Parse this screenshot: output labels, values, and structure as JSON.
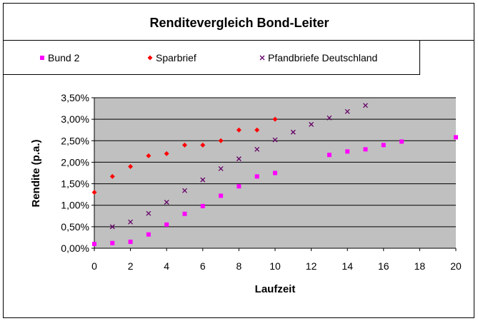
{
  "chart_data": {
    "type": "scatter",
    "title": "Renditevergleich Bond-Leiter",
    "xlabel": "Laufzeit",
    "ylabel": "Rendite (p.a.)",
    "xlim": [
      0,
      20
    ],
    "ylim": [
      0,
      3.5
    ],
    "x_ticks": [
      "0",
      "2",
      "4",
      "6",
      "8",
      "10",
      "12",
      "14",
      "16",
      "18",
      "20"
    ],
    "y_ticks": [
      "0,00%",
      "0,50%",
      "1,00%",
      "1,50%",
      "2,00%",
      "2,50%",
      "3,00%",
      "3,50%"
    ],
    "grid": true,
    "legend_position": "top",
    "series": [
      {
        "name": "Bund 2",
        "marker": "square",
        "color": "#ff00ff",
        "points": [
          [
            0,
            0.1
          ],
          [
            1,
            0.12
          ],
          [
            2,
            0.15
          ],
          [
            3,
            0.32
          ],
          [
            4,
            0.55
          ],
          [
            5,
            0.8
          ],
          [
            6,
            0.98
          ],
          [
            7,
            1.22
          ],
          [
            8,
            1.44
          ],
          [
            9,
            1.67
          ],
          [
            10,
            1.75
          ],
          [
            13,
            2.17
          ],
          [
            14,
            2.25
          ],
          [
            15,
            2.3
          ],
          [
            16,
            2.4
          ],
          [
            17,
            2.48
          ],
          [
            20,
            2.58
          ]
        ]
      },
      {
        "name": "Sparbrief",
        "marker": "diamond",
        "color": "#ff0000",
        "points": [
          [
            0,
            1.3
          ],
          [
            1,
            1.67
          ],
          [
            2,
            1.9
          ],
          [
            3,
            2.15
          ],
          [
            4,
            2.2
          ],
          [
            5,
            2.4
          ],
          [
            6,
            2.4
          ],
          [
            7,
            2.5
          ],
          [
            8,
            2.75
          ],
          [
            9,
            2.75
          ],
          [
            10,
            3.0
          ]
        ]
      },
      {
        "name": "Pfandbriefe Deutschland",
        "marker": "x",
        "color": "#660066",
        "points": [
          [
            1,
            0.5
          ],
          [
            2,
            0.61
          ],
          [
            3,
            0.81
          ],
          [
            4,
            1.07
          ],
          [
            5,
            1.34
          ],
          [
            6,
            1.59
          ],
          [
            7,
            1.85
          ],
          [
            8,
            2.08
          ],
          [
            9,
            2.3
          ],
          [
            10,
            2.52
          ],
          [
            11,
            2.7
          ],
          [
            12,
            2.88
          ],
          [
            13,
            3.03
          ],
          [
            14,
            3.18
          ],
          [
            15,
            3.32
          ]
        ]
      }
    ]
  }
}
